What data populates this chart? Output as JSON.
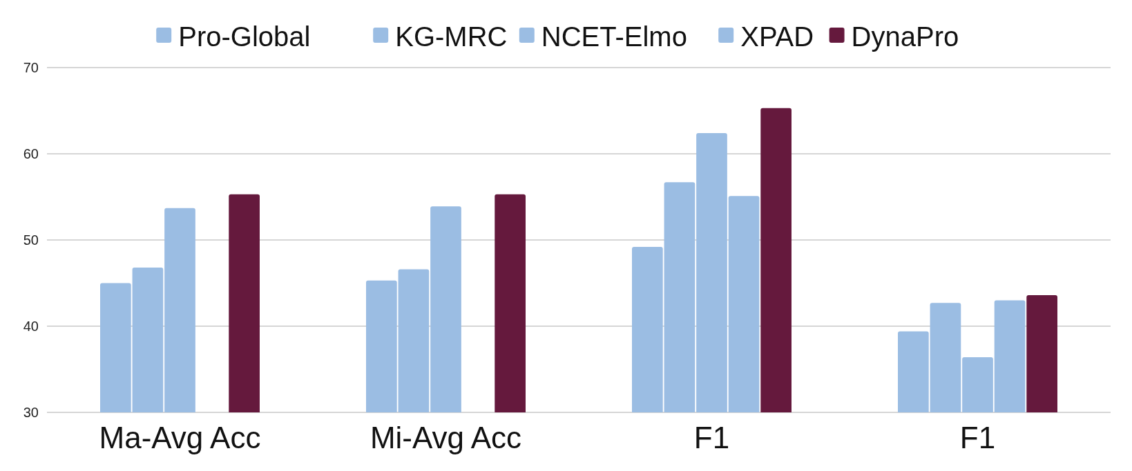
{
  "chart_data": {
    "type": "bar",
    "categories": [
      "Ma-Avg Acc",
      "Mi-Avg Acc",
      "F1",
      "F1"
    ],
    "series": [
      {
        "name": "Pro-Global",
        "color": "#9bbde3",
        "values": [
          45.0,
          45.3,
          49.2,
          39.4
        ]
      },
      {
        "name": "KG-MRC",
        "color": "#9bbde3",
        "values": [
          46.8,
          46.6,
          56.7,
          42.7
        ]
      },
      {
        "name": "NCET-Elmo",
        "color": "#9bbde3",
        "values": [
          53.7,
          53.9,
          62.4,
          36.4
        ]
      },
      {
        "name": "XPAD",
        "color": "#9bbde3",
        "values": [
          null,
          null,
          55.1,
          43.0
        ]
      },
      {
        "name": "DynaPro",
        "color": "#65193d",
        "values": [
          55.3,
          55.3,
          65.3,
          43.6
        ]
      }
    ],
    "ylim": [
      30,
      70
    ],
    "yticks": [
      30,
      40,
      50,
      60,
      70
    ],
    "grid": "y",
    "legend": "top"
  }
}
